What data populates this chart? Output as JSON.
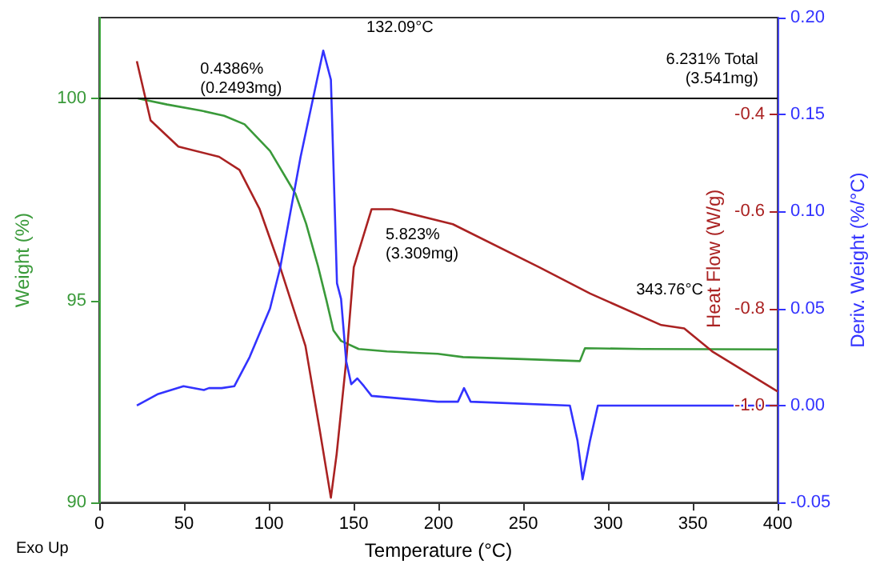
{
  "chart_data": {
    "type": "line",
    "xlabel": "Temperature (°C)",
    "ylabel": "Weight (%)",
    "y2label": "Heat Flow (W/g)",
    "y3label": "Deriv. Weight (%/°C)",
    "xlim": [
      0,
      400
    ],
    "xticks": [
      0,
      50,
      100,
      150,
      200,
      250,
      300,
      350,
      400
    ],
    "ylim": [
      90,
      102
    ],
    "yticks": [
      90,
      95,
      100
    ],
    "y2lim": [
      -1.2,
      -0.2
    ],
    "y2ticks": [
      -0.4,
      -0.6,
      -0.8,
      {
        "value": -1.0,
        "label": "-1.0"
      }
    ],
    "y3lim": [
      -0.05,
      0.2
    ],
    "y3ticks": [
      -0.05,
      {
        "value": 0,
        "label": "0.00"
      },
      0.05,
      {
        "value": 0.1,
        "label": "0.10"
      },
      0.15,
      {
        "value": 0.2,
        "label": "0.20"
      }
    ],
    "grid": false,
    "marker": "none",
    "line_style": "solid",
    "series": [
      {
        "color": "#3a9a3a",
        "x": [
          22.8,
          40,
          60,
          73.7,
          85.7,
          100.7,
          115.7,
          122,
          129,
          134,
          138.1,
          142.6,
          153,
          169.6,
          199.6,
          214.5,
          250,
          283.4,
          286.4,
          320,
          399.7
        ],
        "values": [
          100,
          99.85,
          99.7,
          99.57,
          99.36,
          98.7,
          97.64,
          96.9,
          95.85,
          95,
          94.26,
          94,
          93.8,
          93.74,
          93.68,
          93.6,
          93.55,
          93.5,
          93.82,
          93.8,
          93.79
        ]
      },
      {
        "color": "#aa2222",
        "axis": "y2",
        "x": [
          22.2,
          30.3,
          46.7,
          70.7,
          82.7,
          94.6,
          106.7,
          121.6,
          130,
          136.6,
          140,
          145.6,
          150.1,
          160.6,
          172.6,
          208.5,
          259.5,
          289.4,
          331.4,
          344.9,
          361.3,
          400
        ],
        "values": [
          -0.29,
          -0.412,
          -0.466,
          -0.487,
          -0.514,
          -0.595,
          -0.715,
          -0.877,
          -1.05,
          -1.19,
          -1.1,
          -0.909,
          -0.715,
          -0.595,
          -0.595,
          -0.626,
          -0.715,
          -0.769,
          -0.834,
          -0.841,
          -0.888,
          -0.971
        ]
      },
      {
        "color": "#3333ff",
        "axis": "y3",
        "x": [
          22.2,
          34.8,
          49.7,
          61.7,
          64.7,
          72.2,
          79.7,
          88.7,
          100.7,
          106.7,
          118.7,
          132.1,
          136.6,
          140.2,
          142.6,
          145.6,
          148.6,
          152.2,
          156.1,
          160.6,
          199.6,
          211.5,
          215.1,
          219,
          277.5,
          282,
          285,
          289.4,
          294,
          400
        ],
        "values": [
          0,
          0.006,
          0.01,
          0.008,
          0.009,
          0.009,
          0.01,
          0.025,
          0.05,
          0.071,
          0.128,
          0.183,
          0.168,
          0.063,
          0.055,
          0.023,
          0.011,
          0.014,
          0.01,
          0.005,
          0.002,
          0.002,
          0.009,
          0.002,
          0,
          -0.018,
          -0.038,
          -0.018,
          0,
          0
        ]
      }
    ],
    "ref_lines": [
      {
        "axis": "y",
        "value": 100,
        "label": null,
        "color": "#000000"
      }
    ],
    "annotations": [
      {
        "text": "132.09°C",
        "x": 132.09,
        "y": 101.18
      },
      {
        "text": "0.4386%\n(0.2493mg)",
        "x": 73.7,
        "y": 99.56
      },
      "5.823%\n(3.309mg)",
      {
        "text": "6.231% Total\n(3.541mg)",
        "x": 398,
        "y": 100
      },
      {
        "text": "343.76°C",
        "x": 344.9,
        "y": 94.3
      },
      "Exo Up"
    ]
  }
}
